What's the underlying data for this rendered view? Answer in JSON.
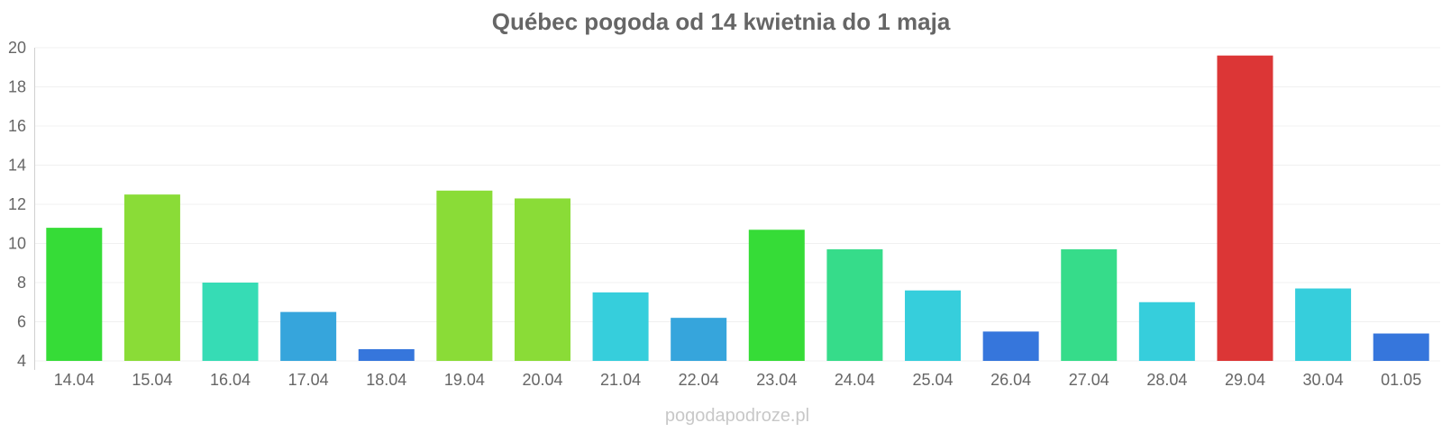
{
  "chart_data": {
    "type": "bar",
    "title": "Québec pogoda od 14 kwietnia do 1 maja",
    "xlabel": "",
    "ylabel": "",
    "ylim": [
      4,
      20
    ],
    "yticks": [
      4,
      6,
      8,
      10,
      12,
      14,
      16,
      18,
      20
    ],
    "grid": true,
    "legend": "none",
    "categories": [
      "14.04",
      "15.04",
      "16.04",
      "17.04",
      "18.04",
      "19.04",
      "20.04",
      "21.04",
      "22.04",
      "23.04",
      "24.04",
      "25.04",
      "26.04",
      "27.04",
      "28.04",
      "29.04",
      "30.04",
      "01.05"
    ],
    "values": [
      10.8,
      12.5,
      8.0,
      6.5,
      4.6,
      12.7,
      12.3,
      7.5,
      6.2,
      10.7,
      9.7,
      7.6,
      5.5,
      9.7,
      7.0,
      19.6,
      7.7,
      5.4
    ],
    "colors": [
      "#36dc37",
      "#8adc37",
      "#36dcb5",
      "#36a5dc",
      "#3676dc",
      "#8adc37",
      "#8adc37",
      "#36cedc",
      "#36a5dc",
      "#36dc37",
      "#36dc8a",
      "#36cedc",
      "#3676dc",
      "#36dc8a",
      "#36cedc",
      "#dc3636",
      "#36cedc",
      "#3676dc"
    ]
  },
  "footer": {
    "watermark": "pogodapodroze.pl"
  }
}
